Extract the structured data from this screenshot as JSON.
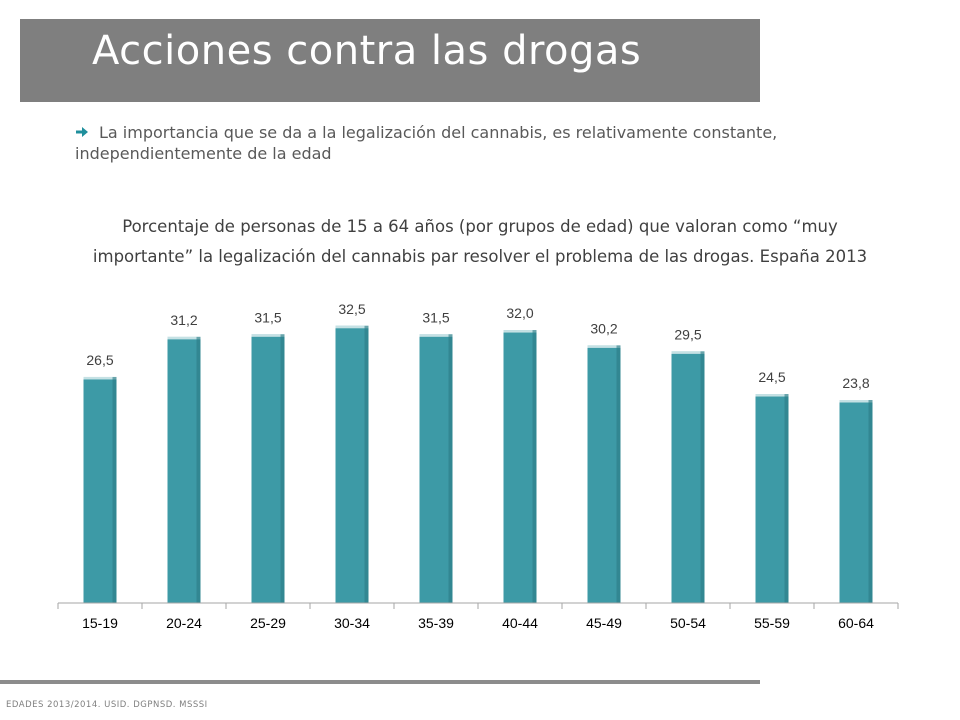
{
  "title": "Acciones contra las drogas",
  "bullet": "La importancia que se da a la legalización del cannabis, es relativamente constante, independientemente de la edad",
  "source": "EDADES 2013/2014. USID. DGPNSD. MSSSI",
  "colors": {
    "title_band": "#7f7f7f",
    "bar": "#3d9aa6",
    "bar_dark": "#2b7c86",
    "accent_arrow": "#1f8f9c"
  },
  "chart_data": {
    "type": "bar",
    "title_lines": [
      "Porcentaje de personas de 15 a 64 años (por grupos de edad) que valoran como “muy",
      "importante” la legalización del cannabis par resolver el problema de las drogas. España 2013"
    ],
    "categories": [
      "15-19",
      "20-24",
      "25-29",
      "30-34",
      "35-39",
      "40-44",
      "45-49",
      "50-54",
      "55-59",
      "60-64"
    ],
    "values": [
      26.5,
      31.2,
      31.5,
      32.5,
      31.5,
      32.0,
      30.2,
      29.5,
      24.5,
      23.8
    ],
    "value_labels": [
      "26,5",
      "31,2",
      "31,5",
      "32,5",
      "31,5",
      "32,0",
      "30,2",
      "29,5",
      "24,5",
      "23,8"
    ],
    "ylim": [
      0,
      34
    ],
    "grid": false,
    "legend": "none"
  }
}
